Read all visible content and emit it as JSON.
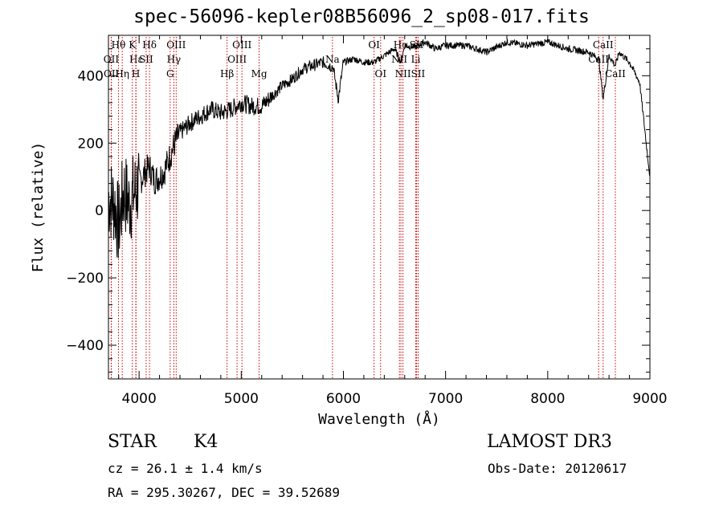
{
  "title": "spec-56096-kepler08B56096_2_sp08-017.fits",
  "footer": {
    "object_class": "STAR",
    "subclass": "K4",
    "survey": "LAMOST DR3",
    "cz": "cz = 26.1 ± 1.4 km/s",
    "obs_date": "Obs-Date: 20120617",
    "coords": "RA = 295.30267, DEC =  39.52689"
  },
  "colors": {
    "spectrum": "#000000",
    "lines": "#cc0000",
    "axes": "#000000",
    "background": "#ffffff"
  },
  "chart_data": {
    "type": "line",
    "title": "spec-56096-kepler08B56096_2_sp08-017.fits",
    "xlabel": "Wavelength (Å)",
    "ylabel": "Flux (relative)",
    "xlim": [
      3700,
      9000
    ],
    "ylim": [
      -500,
      520
    ],
    "x_ticks": [
      4000,
      5000,
      6000,
      7000,
      8000,
      9000
    ],
    "y_ticks": [
      -400,
      -200,
      0,
      200,
      400
    ],
    "x_tick_labels": [
      "4000",
      "5000",
      "6000",
      "7000",
      "8000",
      "9000"
    ],
    "y_tick_labels": [
      "−400",
      "−200",
      "0",
      "200",
      "400"
    ],
    "series": [
      {
        "name": "flux",
        "x": [
          3700,
          3760,
          3800,
          3850,
          3900,
          3950,
          4000,
          4050,
          4100,
          4150,
          4200,
          4250,
          4300,
          4350,
          4400,
          4500,
          4600,
          4700,
          4800,
          4900,
          5000,
          5100,
          5200,
          5300,
          5400,
          5500,
          5600,
          5700,
          5800,
          5900,
          5950,
          6000,
          6100,
          6200,
          6300,
          6400,
          6500,
          6563,
          6600,
          6700,
          6800,
          6900,
          7000,
          7200,
          7400,
          7600,
          7800,
          8000,
          8200,
          8400,
          8500,
          8542,
          8600,
          8662,
          8700,
          8800,
          8900,
          9000
        ],
        "y": [
          40,
          20,
          -50,
          60,
          20,
          50,
          80,
          110,
          130,
          90,
          100,
          120,
          160,
          200,
          230,
          260,
          280,
          300,
          290,
          300,
          320,
          310,
          310,
          340,
          370,
          390,
          420,
          430,
          440,
          425,
          330,
          440,
          450,
          440,
          440,
          460,
          480,
          440,
          490,
          485,
          500,
          480,
          490,
          490,
          470,
          500,
          490,
          500,
          480,
          470,
          450,
          330,
          460,
          430,
          470,
          440,
          380,
          100
        ]
      }
    ],
    "spectral_lines": [
      {
        "label": "Hθ",
        "wavelength": 3798,
        "row": 1
      },
      {
        "label": "OII",
        "wavelength": 3727,
        "row": 2
      },
      {
        "label": "OII",
        "wavelength": 3729,
        "row": 3
      },
      {
        "label": "K",
        "wavelength": 3934,
        "row": 1
      },
      {
        "label": "Hε",
        "wavelength": 3970,
        "row": 2
      },
      {
        "label": "Hη",
        "wavelength": 3835,
        "row": 3
      },
      {
        "label": "H",
        "wavelength": 3968,
        "row": 3
      },
      {
        "label": "SII",
        "wavelength": 4069,
        "row": 2
      },
      {
        "label": "Hδ",
        "wavelength": 4102,
        "row": 1
      },
      {
        "label": "OIII",
        "wavelength": 4363,
        "row": 1
      },
      {
        "label": "Hγ",
        "wavelength": 4340,
        "row": 2
      },
      {
        "label": "G",
        "wavelength": 4304,
        "row": 3
      },
      {
        "label": "Hβ",
        "wavelength": 4861,
        "row": 3
      },
      {
        "label": "OIII",
        "wavelength": 5007,
        "row": 1
      },
      {
        "label": "OIII",
        "wavelength": 4959,
        "row": 2
      },
      {
        "label": "Mg",
        "wavelength": 5175,
        "row": 3
      },
      {
        "label": "Na",
        "wavelength": 5893,
        "row": 2
      },
      {
        "label": "OI",
        "wavelength": 6300,
        "row": 1
      },
      {
        "label": "OI",
        "wavelength": 6364,
        "row": 3
      },
      {
        "label": "Hα",
        "wavelength": 6563,
        "row": 1
      },
      {
        "label": "SII",
        "wavelength": 6716,
        "row": 1
      },
      {
        "label": "NII",
        "wavelength": 6548,
        "row": 2
      },
      {
        "label": "NII",
        "wavelength": 6583,
        "row": 3
      },
      {
        "label": "Li",
        "wavelength": 6708,
        "row": 2
      },
      {
        "label": "SII",
        "wavelength": 6731,
        "row": 3
      },
      {
        "label": "CaII",
        "wavelength": 8542,
        "row": 1
      },
      {
        "label": "CaII",
        "wavelength": 8498,
        "row": 2
      },
      {
        "label": "CaII",
        "wavelength": 8662,
        "row": 3
      }
    ]
  }
}
